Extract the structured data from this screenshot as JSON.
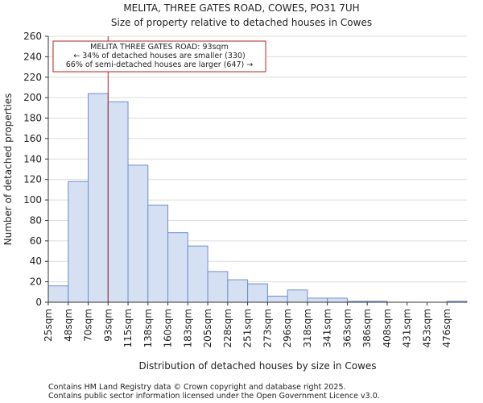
{
  "chart_data": {
    "type": "bar",
    "title": "MELITA, THREE GATES ROAD, COWES, PO31 7UH",
    "subtitle": "Size of property relative to detached houses in Cowes",
    "xlabel": "Distribution of detached houses by size in Cowes",
    "ylabel": "Number of detached properties",
    "ylim": [
      0,
      260
    ],
    "yticks": [
      0,
      20,
      40,
      60,
      80,
      100,
      120,
      140,
      160,
      180,
      200,
      220,
      240,
      260
    ],
    "categories": [
      "25sqm",
      "48sqm",
      "70sqm",
      "93sqm",
      "115sqm",
      "138sqm",
      "160sqm",
      "183sqm",
      "205sqm",
      "228sqm",
      "251sqm",
      "273sqm",
      "296sqm",
      "318sqm",
      "341sqm",
      "363sqm",
      "386sqm",
      "408sqm",
      "431sqm",
      "453sqm",
      "476sqm"
    ],
    "values": [
      16,
      118,
      204,
      196,
      134,
      95,
      68,
      55,
      30,
      22,
      18,
      6,
      12,
      4,
      4,
      1,
      1,
      0,
      0,
      0,
      1
    ],
    "bar_color": "#d6e0f3",
    "bar_edge_color": "#6f8fca",
    "marker": {
      "bin_index": 3,
      "color": "#b22222",
      "annotation_lines": [
        "MELITA THREE GATES ROAD: 93sqm",
        "← 34% of detached houses are smaller (330)",
        "66% of semi-detached houses are larger (647) →"
      ]
    }
  },
  "footer": {
    "line1": "Contains HM Land Registry data © Crown copyright and database right 2025.",
    "line2": "Contains public sector information licensed under the Open Government Licence v3.0."
  }
}
